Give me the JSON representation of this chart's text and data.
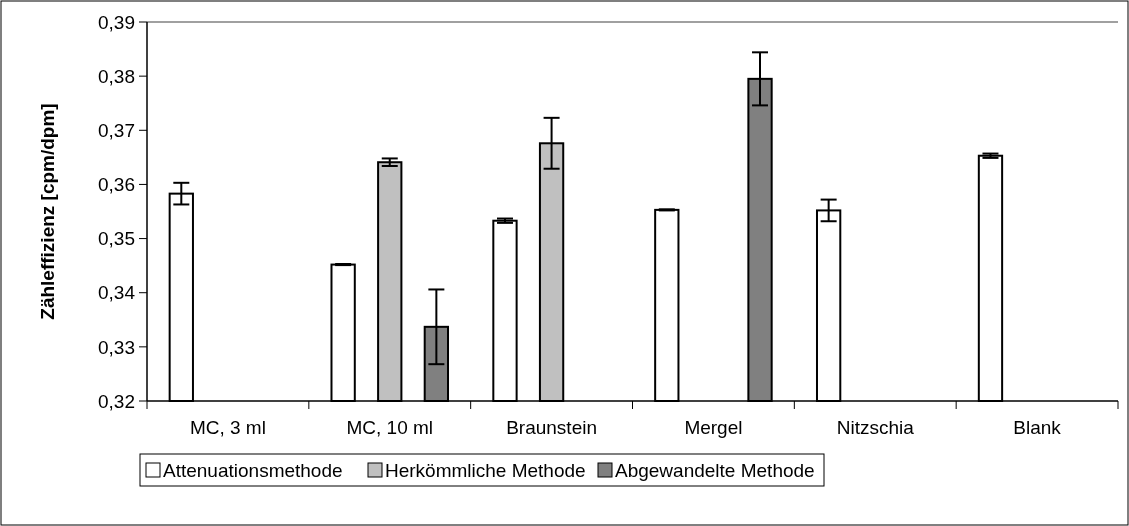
{
  "chart_data": {
    "type": "bar",
    "ylabel": "Zähleffizienz [cpm/dpm]",
    "categories": [
      "MC, 3 ml",
      "MC, 10 ml",
      "Braunstein",
      "Mergel",
      "Nitzschia",
      "Blank"
    ],
    "series": [
      {
        "name": "Attenuationsmethode",
        "color": "#ffffff",
        "values": [
          0.3583,
          0.3452,
          0.3533,
          0.3553,
          0.3552,
          0.3653
        ],
        "errors": [
          0.002,
          0.0001,
          0.0004,
          0.0001,
          0.002,
          0.0004
        ]
      },
      {
        "name": "Herkömmliche Methode",
        "color": "#c0c0c0",
        "values": [
          null,
          0.3641,
          0.3676,
          null,
          null,
          null
        ],
        "errors": [
          null,
          0.0007,
          0.0047,
          null,
          null,
          null
        ]
      },
      {
        "name": "Abgewandelte Methode",
        "color": "#808080",
        "values": [
          null,
          0.3337,
          null,
          0.3795,
          null,
          null
        ],
        "errors": [
          null,
          0.0069,
          null,
          0.0049,
          null,
          null
        ]
      }
    ],
    "ylim": [
      0.32,
      0.39
    ],
    "yticks": [
      {
        "value": 0.32,
        "label": "0,32"
      },
      {
        "value": 0.33,
        "label": "0,33"
      },
      {
        "value": 0.34,
        "label": "0,34"
      },
      {
        "value": 0.35,
        "label": "0,35"
      },
      {
        "value": 0.36,
        "label": "0,36"
      },
      {
        "value": 0.37,
        "label": "0,37"
      },
      {
        "value": 0.38,
        "label": "0,38"
      },
      {
        "value": 0.39,
        "label": "0,39"
      }
    ],
    "grid": false,
    "legend": "bottom"
  }
}
